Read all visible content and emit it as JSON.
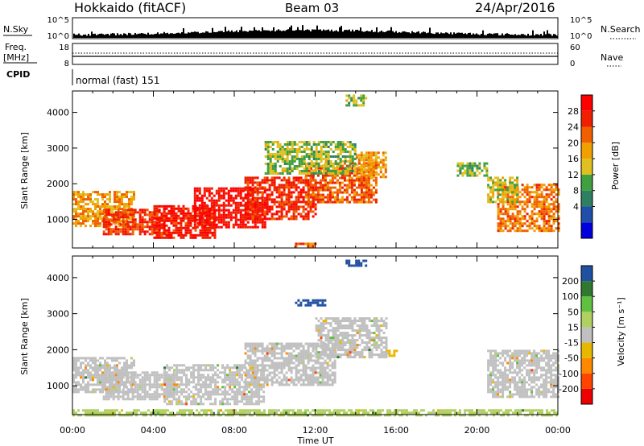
{
  "header": {
    "station": "Hokkaido (fitACF)",
    "beam": "Beam 03",
    "date": "24/Apr/2016"
  },
  "summary_panel": {
    "nsky_label": "N.Sky",
    "nsearch_label": "N.Search",
    "noise_ticks": [
      "10^5",
      "10^0"
    ],
    "noise_ticks_right": [
      "10^5",
      "10^0"
    ],
    "freq_label": "Freq.",
    "freq_unit": "[MHz]",
    "freq_ticks": [
      "18",
      "8"
    ],
    "nave_label": "Nave",
    "nave_ticks": [
      "60",
      "0"
    ],
    "cpid_label": "CPID",
    "cpid_text": "normal (fast) 151"
  },
  "colors": {
    "power_scale": [
      "#0000dd",
      "#1f4fa8",
      "#2f8060",
      "#40a040",
      "#e0c020",
      "#f0a000",
      "#f06000",
      "#ee2000",
      "#ff0000"
    ],
    "velocity_scale": [
      "#ee0000",
      "#ff4400",
      "#ff8800",
      "#e8b800",
      "#c0c0c0",
      "#b0d060",
      "#60c040",
      "#307830",
      "#2050a0"
    ]
  },
  "chart_data": [
    {
      "type": "heatmap",
      "title": "",
      "xlabel": "",
      "ylabel": "Slant Range [km]",
      "xlim": [
        0,
        24
      ],
      "ylim": [
        200,
        4600
      ],
      "x_ticks": [
        "00:00",
        "04:00",
        "08:00",
        "12:00",
        "16:00",
        "20:00",
        "00:00"
      ],
      "y_ticks": [
        "1000",
        "2000",
        "3000",
        "4000"
      ],
      "colorbar": {
        "label": "Power [dB]",
        "ticks": [
          "28",
          "24",
          "20",
          "16",
          "12",
          "8",
          "4"
        ],
        "range": [
          0,
          32
        ]
      },
      "regions": [
        {
          "x": [
            0.0,
            3.0
          ],
          "y": [
            800,
            1800
          ],
          "value": 20
        },
        {
          "x": [
            1.5,
            4.5
          ],
          "y": [
            600,
            1300
          ],
          "value": 26
        },
        {
          "x": [
            4.0,
            7.0
          ],
          "y": [
            500,
            1400
          ],
          "value": 28
        },
        {
          "x": [
            6.0,
            9.5
          ],
          "y": [
            800,
            1900
          ],
          "value": 29
        },
        {
          "x": [
            8.5,
            12.0
          ],
          "y": [
            1000,
            2200
          ],
          "value": 27
        },
        {
          "x": [
            11.5,
            15.0
          ],
          "y": [
            1500,
            2600
          ],
          "value": 24
        },
        {
          "x": [
            14.0,
            15.5
          ],
          "y": [
            2200,
            2900
          ],
          "value": 20
        },
        {
          "x": [
            9.5,
            14.0
          ],
          "y": [
            2300,
            3200
          ],
          "value": 14
        },
        {
          "x": [
            13.5,
            14.5
          ],
          "y": [
            4200,
            4500
          ],
          "value": 14
        },
        {
          "x": [
            19.0,
            20.5
          ],
          "y": [
            2200,
            2600
          ],
          "value": 14
        },
        {
          "x": [
            21.0,
            24.0
          ],
          "y": [
            700,
            2000
          ],
          "value": 22
        },
        {
          "x": [
            20.5,
            22.0
          ],
          "y": [
            1500,
            2200
          ],
          "value": 16
        },
        {
          "x": [
            11.0,
            12.0
          ],
          "y": [
            250,
            350
          ],
          "value": 24
        }
      ]
    },
    {
      "type": "heatmap",
      "title": "",
      "xlabel": "Time UT",
      "ylabel": "Slant Range [km]",
      "xlim": [
        0,
        24
      ],
      "ylim": [
        200,
        4600
      ],
      "x_ticks": [
        "00:00",
        "04:00",
        "08:00",
        "12:00",
        "16:00",
        "20:00",
        "00:00"
      ],
      "y_ticks": [
        "1000",
        "2000",
        "3000",
        "4000"
      ],
      "colorbar": {
        "label": "Velocity [m s⁻¹]",
        "ticks": [
          "200",
          "100",
          "50",
          "15",
          "-15",
          "-50",
          "-100",
          "-200"
        ],
        "range": [
          -250,
          250
        ]
      },
      "regions": [
        {
          "x": [
            0.0,
            3.0
          ],
          "y": [
            800,
            1800
          ],
          "value": 0
        },
        {
          "x": [
            1.5,
            5.0
          ],
          "y": [
            600,
            1400
          ],
          "value": 0
        },
        {
          "x": [
            4.5,
            9.5
          ],
          "y": [
            500,
            1600
          ],
          "value": 0
        },
        {
          "x": [
            8.5,
            13.0
          ],
          "y": [
            1000,
            2200
          ],
          "value": 0
        },
        {
          "x": [
            12.0,
            15.5
          ],
          "y": [
            1800,
            2900
          ],
          "value": 0
        },
        {
          "x": [
            11.0,
            12.5
          ],
          "y": [
            3200,
            3400
          ],
          "value": 220
        },
        {
          "x": [
            13.5,
            14.5
          ],
          "y": [
            4300,
            4500
          ],
          "value": 220
        },
        {
          "x": [
            15.5,
            16.0
          ],
          "y": [
            1800,
            2000
          ],
          "value": -60
        },
        {
          "x": [
            20.5,
            24.0
          ],
          "y": [
            700,
            2000
          ],
          "value": 0
        },
        {
          "x": [
            0.0,
            24.0
          ],
          "y": [
            200,
            350
          ],
          "value": 40
        }
      ]
    }
  ]
}
